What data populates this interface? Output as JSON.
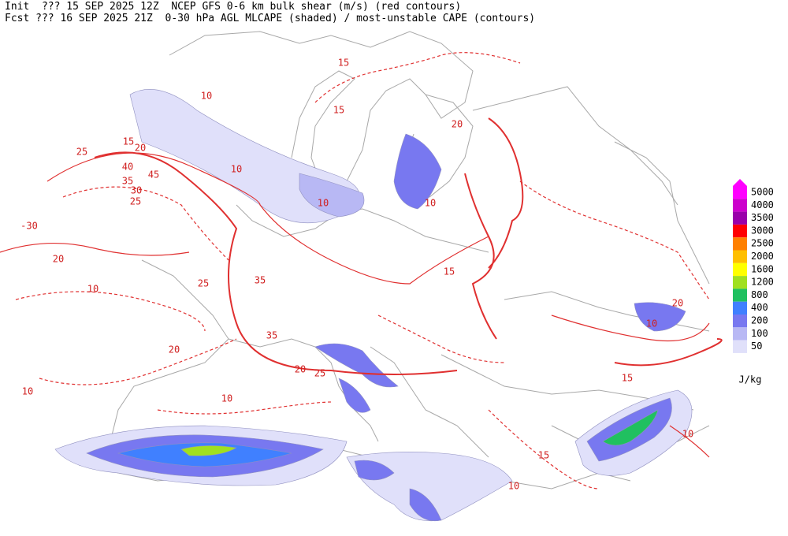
{
  "header": {
    "line1": "Init  ??? 15 SEP 2025 12Z  NCEP GFS 0-6 km bulk shear (m/s) (red contours)",
    "line2": "Fcst ??? 16 SEP 2025 21Z  0-30 hPa AGL MLCAPE (shaded) / most-unstable CAPE (contours)"
  },
  "legend": {
    "units": "J/kg",
    "entries": [
      {
        "label": "5000",
        "color": "#ff00ff"
      },
      {
        "label": "4000",
        "color": "#cc00cc"
      },
      {
        "label": "3500",
        "color": "#9900aa"
      },
      {
        "label": "3000",
        "color": "#ff0000"
      },
      {
        "label": "2500",
        "color": "#ff8000"
      },
      {
        "label": "2000",
        "color": "#ffbf00"
      },
      {
        "label": "1600",
        "color": "#ffff00"
      },
      {
        "label": "1200",
        "color": "#a0e020"
      },
      {
        "label": "800",
        "color": "#20c060"
      },
      {
        "label": "400",
        "color": "#4080ff"
      },
      {
        "label": "200",
        "color": "#7878f0"
      },
      {
        "label": "100",
        "color": "#b8b8f4"
      },
      {
        "label": "50",
        "color": "#e0e0fa"
      }
    ]
  },
  "contour_labels": [
    "15",
    "10",
    "15",
    "20",
    "25",
    "40",
    "45",
    "35",
    "30",
    "25",
    "-30",
    "20",
    "10",
    "25",
    "35",
    "35",
    "20",
    "20",
    "25",
    "10",
    "10",
    "10",
    "10",
    "10",
    "20",
    "15",
    "10",
    "10",
    "15",
    "10",
    "15",
    "20",
    "15"
  ]
}
